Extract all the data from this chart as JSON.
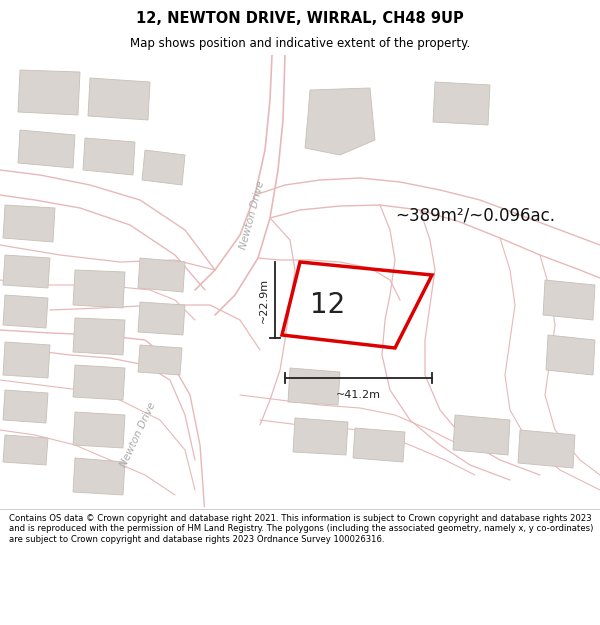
{
  "title_line1": "12, NEWTON DRIVE, WIRRAL, CH48 9UP",
  "title_line2": "Map shows position and indicative extent of the property.",
  "area_label": "~389m²/~0.096ac.",
  "property_number": "12",
  "dim_width": "~41.2m",
  "dim_height": "~22.9m",
  "footer": "Contains OS data © Crown copyright and database right 2021. This information is subject to Crown copyright and database rights 2023 and is reproduced with the permission of HM Land Registry. The polygons (including the associated geometry, namely x, y co-ordinates) are subject to Crown copyright and database rights 2023 Ordnance Survey 100026316.",
  "map_bg": "#f7f4f2",
  "property_edge": "#dd0000",
  "building_fill": "#d9d4cf",
  "building_edge": "#c8c0b8",
  "road_color": "#e8b8b8",
  "road_lw": 1.0,
  "title_bg": "#ffffff",
  "footer_bg": "#ffffff",
  "dim_color": "#222222",
  "nd_label_color": "#aaaaaa",
  "title_fontsize": 10.5,
  "subtitle_fontsize": 8.5,
  "area_fontsize": 12,
  "num_fontsize": 20,
  "dim_fontsize": 8,
  "nd_fontsize": 7.5
}
